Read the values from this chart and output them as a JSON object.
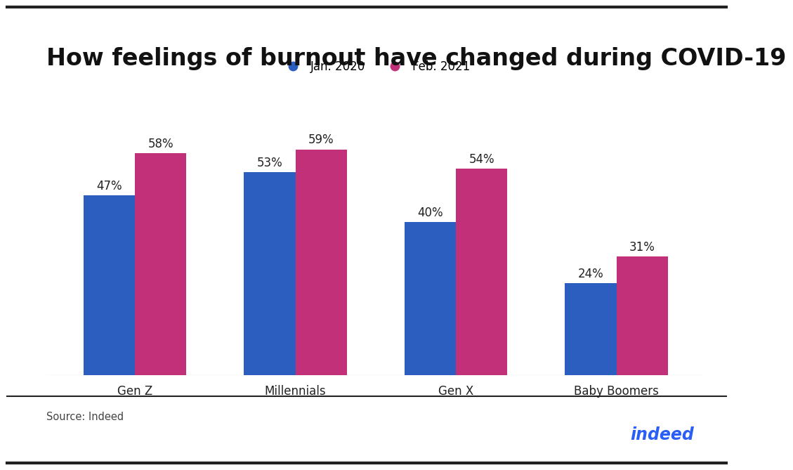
{
  "title": "How feelings of burnout have changed during COVID-19",
  "categories": [
    "Gen Z",
    "Millennials",
    "Gen X",
    "Baby Boomers"
  ],
  "series": [
    {
      "label": "Jan. 2020",
      "color": "#2B5EBF",
      "values": [
        47,
        53,
        40,
        24
      ]
    },
    {
      "label": "Feb. 2021",
      "color": "#C2307A",
      "values": [
        58,
        59,
        54,
        31
      ]
    }
  ],
  "bar_width": 0.32,
  "ylim": [
    0,
    72
  ],
  "source": "Source: Indeed",
  "indeed_color": "#2B5EF5",
  "background_color": "#ffffff",
  "title_fontsize": 24,
  "label_fontsize": 12,
  "value_fontsize": 12,
  "source_fontsize": 10.5,
  "legend_fontsize": 12,
  "border_color": "#222222"
}
